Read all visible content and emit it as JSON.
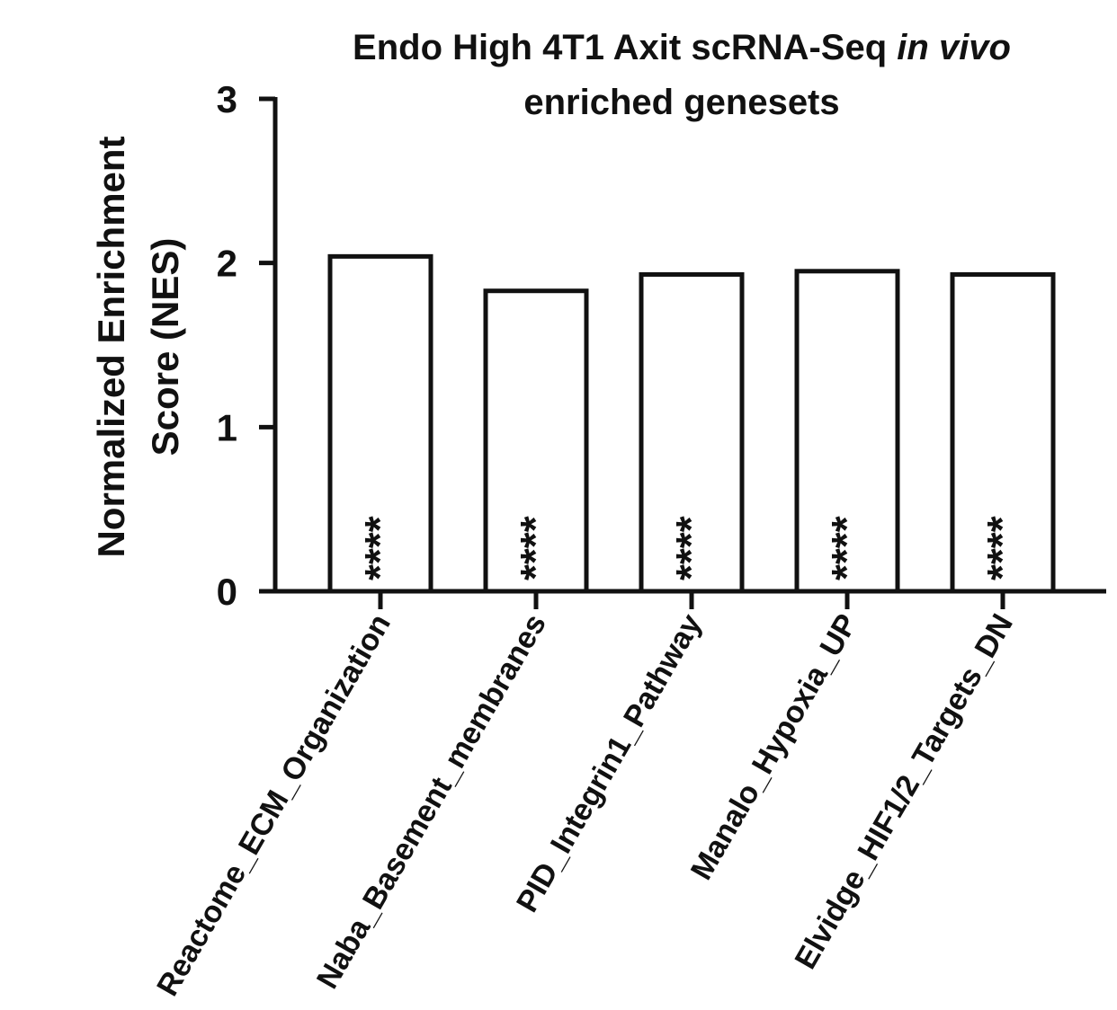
{
  "chart_data": {
    "type": "bar",
    "title_line1": "Endo High 4T1 Axit scRNA-Seq ",
    "title_italic": "in vivo",
    "title_line2": "enriched genesets",
    "ylabel_line1": "Normalized Enrichment",
    "ylabel_line2": "Score (NES)",
    "xlabel": "",
    "ylim": [
      0,
      3
    ],
    "yticks": [
      0,
      1,
      2,
      3
    ],
    "categories": [
      "Reactome_ECM_Organization",
      "Naba_Basement_membranes",
      "PID_Integrin1_Pathway",
      "Manalo_Hypoxia_UP",
      "Elvidge_HIF1/2_Targets_DN"
    ],
    "values": [
      2.04,
      1.83,
      1.93,
      1.95,
      1.93
    ],
    "significance": [
      "****",
      "****",
      "****",
      "****",
      "****"
    ],
    "grid": false,
    "legend": "none",
    "bar_fill": "#ffffff",
    "bar_stroke": "#111111"
  }
}
